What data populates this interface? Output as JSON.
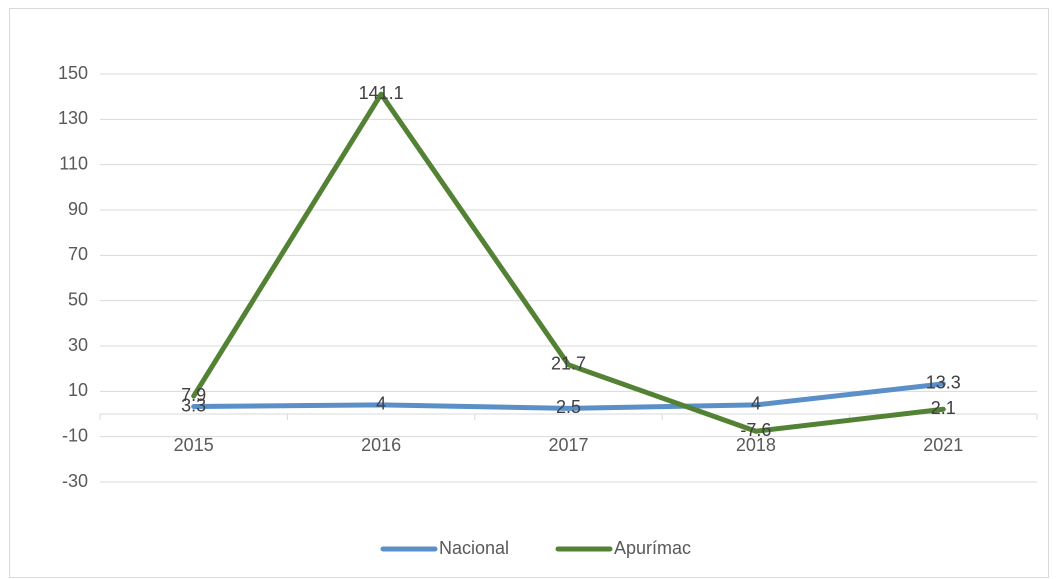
{
  "chart_data": {
    "type": "line",
    "categories": [
      "2015",
      "2016",
      "2017",
      "2018",
      "2021"
    ],
    "series": [
      {
        "name": "Nacional",
        "color": "#5b8fc7",
        "values": [
          3.3,
          4,
          2.5,
          4,
          13.3
        ]
      },
      {
        "name": "Apurímac",
        "color": "#548235",
        "values": [
          7.9,
          141.1,
          21.7,
          -7.6,
          2.1
        ]
      }
    ],
    "ylim": [
      -30,
      150
    ],
    "yticks": [
      -30,
      -10,
      10,
      30,
      50,
      70,
      90,
      110,
      130,
      150
    ],
    "grid": true,
    "legend": "bottom"
  }
}
